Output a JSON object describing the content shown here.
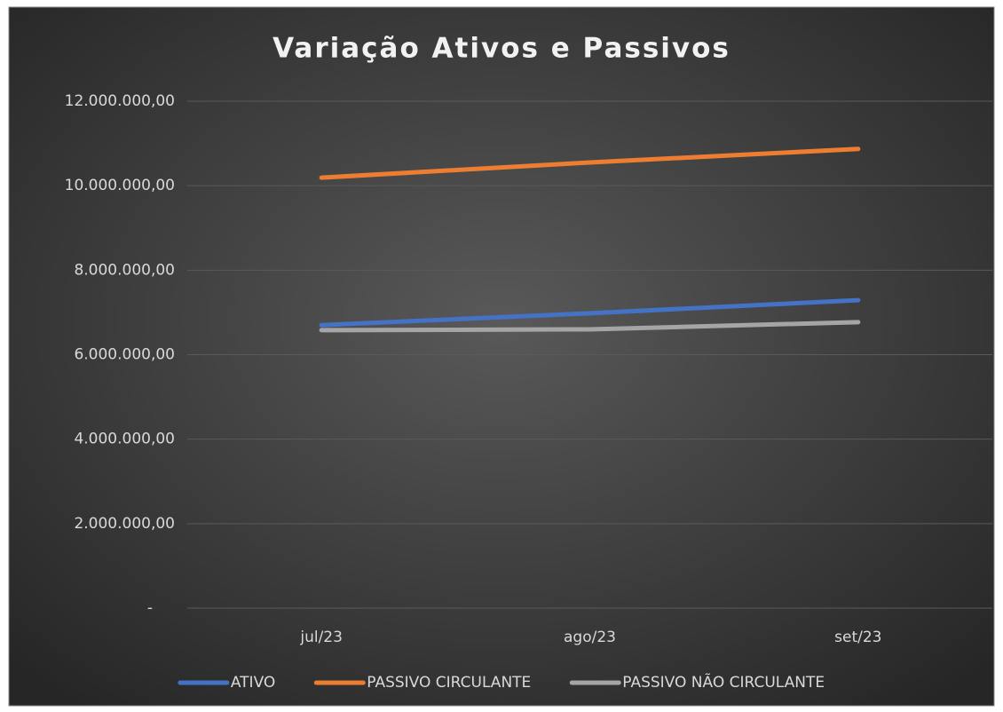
{
  "chart_data": {
    "type": "line",
    "title": "Variação Ativos e Passivos",
    "categories": [
      "jul/23",
      "ago/23",
      "set/23"
    ],
    "series": [
      {
        "name": "ATIVO",
        "color": "#4472c4",
        "values": [
          6700000,
          6980000,
          7290000
        ]
      },
      {
        "name": "PASSIVO CIRCULANTE",
        "color": "#ed7d31",
        "values": [
          10190000,
          10550000,
          10870000
        ]
      },
      {
        "name": "PASSIVO NÃO CIRCULANTE",
        "color": "#a5a5a5",
        "values": [
          6580000,
          6600000,
          6770000
        ]
      }
    ],
    "ylim": [
      0,
      12000000
    ],
    "yticks": [
      {
        "value": 0,
        "label": "-"
      },
      {
        "value": 2000000,
        "label": "2.000.000,00"
      },
      {
        "value": 4000000,
        "label": "4.000.000,00"
      },
      {
        "value": 6000000,
        "label": "6.000.000,00"
      },
      {
        "value": 8000000,
        "label": "8.000.000,00"
      },
      {
        "value": 10000000,
        "label": "10.000.000,00"
      },
      {
        "value": 12000000,
        "label": "12.000.000,00"
      }
    ],
    "grid": true,
    "legend": "bottom"
  }
}
